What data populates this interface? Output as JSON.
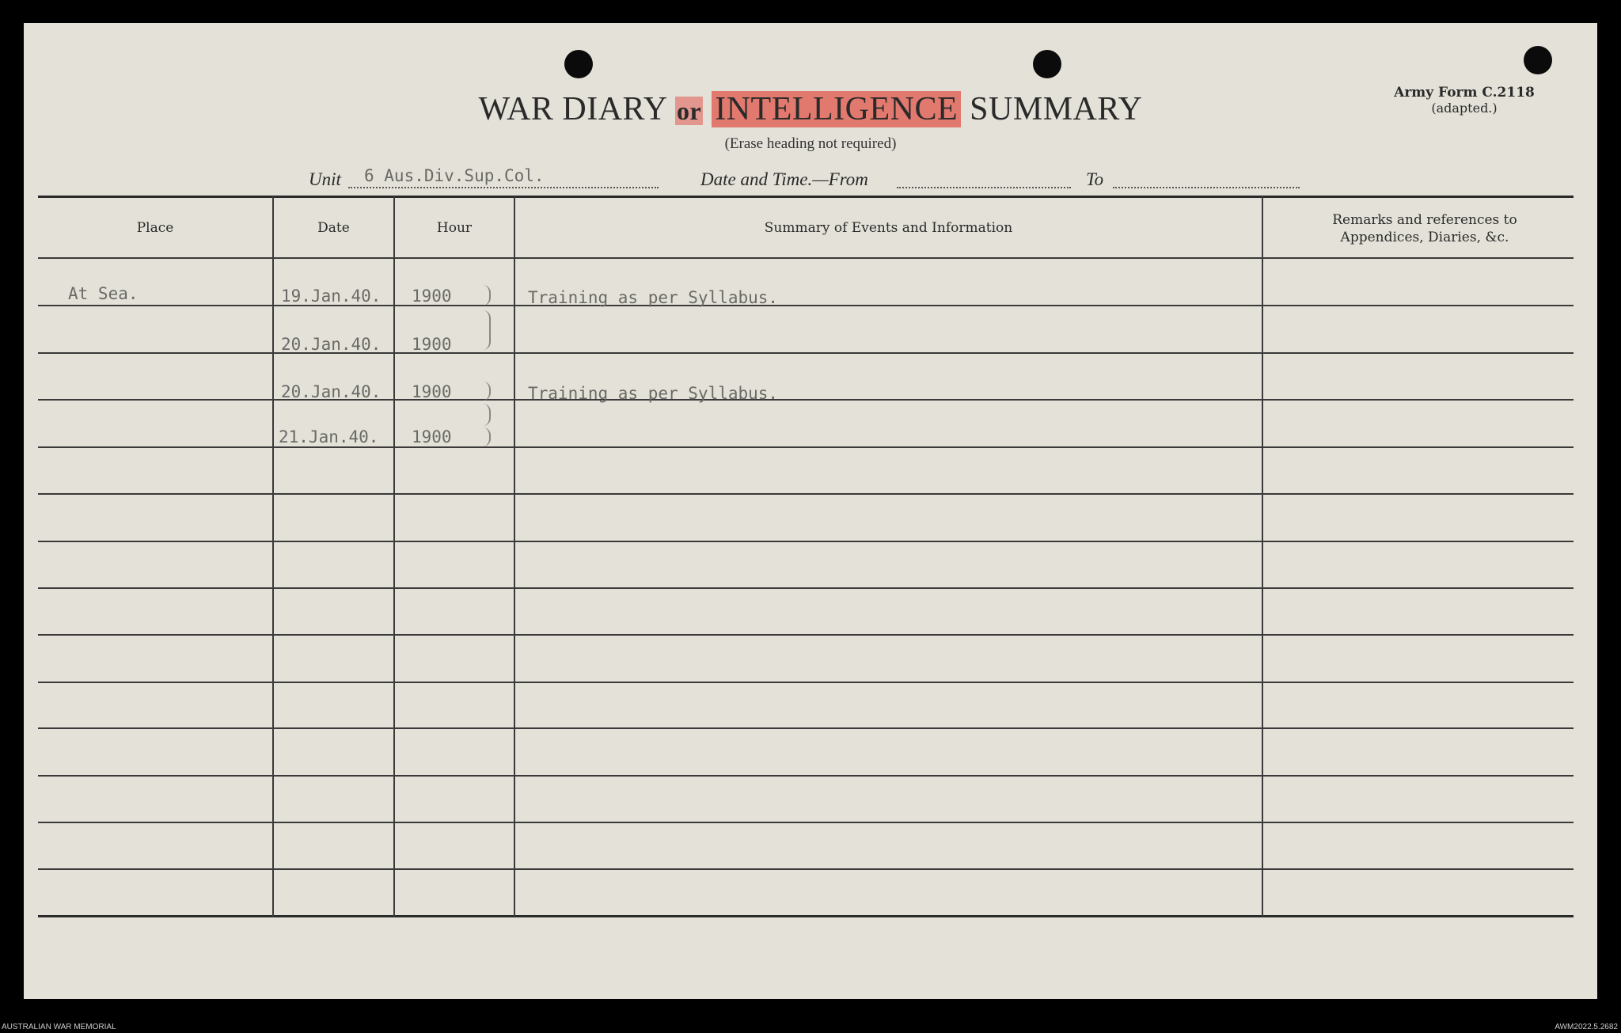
{
  "form": {
    "title_part1": "WAR DIARY",
    "title_or": "or",
    "title_part2": "INTELLIGENCE",
    "title_part3": "SUMMARY",
    "subtitle": "(Erase heading not required)",
    "form_number": "Army Form C.2118",
    "form_note": "(adapted.)",
    "highlight_color": "#e0564b"
  },
  "header_fields": {
    "unit_label": "Unit",
    "unit_value": "6 Aus.Div.Sup.Col.",
    "date_from_label": "Date and Time.—From",
    "date_from_value": "",
    "to_label": "To",
    "to_value": ""
  },
  "table": {
    "columns": [
      "Place",
      "Date",
      "Hour",
      "Summary of Events and Information",
      "Remarks and references to Appendices, Diaries, &c."
    ],
    "entries": [
      {
        "place": "At Sea.",
        "date": "19.Jan.40.",
        "hour": "1900",
        "summary": "Training as per Syllabus."
      },
      {
        "place": "",
        "date": "20.Jan.40.",
        "hour": "1900",
        "summary": ""
      },
      {
        "place": "",
        "date": "20.Jan.40.",
        "hour": "1900",
        "summary": "Training as per Syllabus."
      },
      {
        "place": "",
        "date": "21.Jan.40.",
        "hour": "1900",
        "summary": ""
      }
    ]
  },
  "footer": {
    "left": "AUSTRALIAN WAR MEMORIAL",
    "right": "AWM2022.5.2682"
  }
}
